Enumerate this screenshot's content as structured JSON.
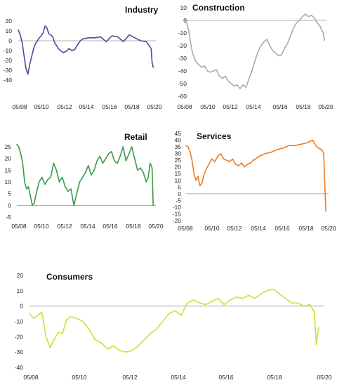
{
  "chart_data": [
    {
      "type": "line",
      "title": "Industry",
      "xlabel": "",
      "ylabel": "",
      "ylim": [
        -40,
        20
      ],
      "yticks": [
        -40,
        -30,
        -20,
        -10,
        0,
        10,
        20
      ],
      "x_tick_labels": [
        "05/08",
        "05/10",
        "05/12",
        "05/14",
        "05/16",
        "05/18",
        "05/20"
      ],
      "color": "#4a4a9a",
      "series": [
        {
          "x": [
            2008.33,
            2008.5,
            2008.67,
            2008.83,
            2009.0,
            2009.17,
            2009.33,
            2009.5,
            2009.67,
            2009.83,
            2010.0,
            2010.17,
            2010.33,
            2010.5,
            2010.67,
            2010.83,
            2011.0,
            2011.17,
            2011.33,
            2011.5,
            2011.67,
            2011.83,
            2012.0,
            2012.25,
            2012.5,
            2012.75,
            2013.0,
            2013.25,
            2013.5,
            2013.75,
            2014.0,
            2014.5,
            2015.0,
            2015.5,
            2016.0,
            2016.5,
            2017.0,
            2017.5,
            2018.0,
            2018.5,
            2019.0,
            2019.5,
            2019.75,
            2019.92,
            2020.0,
            2020.1
          ],
          "y": [
            11,
            6,
            -2,
            -15,
            -28,
            -34,
            -24,
            -16,
            -8,
            -3,
            0,
            3,
            5,
            8,
            15,
            13,
            7,
            6,
            4,
            -2,
            -5,
            -8,
            -10,
            -12,
            -11,
            -8,
            -10,
            -9,
            -4,
            0,
            2,
            3,
            3,
            4,
            -1,
            5,
            4,
            -1,
            6,
            3,
            0,
            -1,
            -5,
            -8,
            -22,
            -27
          ]
        }
      ]
    },
    {
      "type": "line",
      "title": "Construction",
      "xlabel": "",
      "ylabel": "",
      "ylim": [
        -60,
        10
      ],
      "yticks": [
        -60,
        -50,
        -40,
        -30,
        -20,
        -10,
        0,
        10
      ],
      "x_tick_labels": [
        "05/08",
        "05/10",
        "05/12",
        "05/14",
        "05/16",
        "05/18",
        "05/20"
      ],
      "color": "#aaaaaa",
      "series": [
        {
          "x": [
            2008.33,
            2008.5,
            2008.67,
            2008.83,
            2009.0,
            2009.25,
            2009.5,
            2009.75,
            2010.0,
            2010.25,
            2010.5,
            2010.75,
            2011.0,
            2011.25,
            2011.5,
            2011.75,
            2012.0,
            2012.25,
            2012.5,
            2012.75,
            2013.0,
            2013.25,
            2013.5,
            2013.75,
            2014.0,
            2014.25,
            2014.5,
            2014.75,
            2015.0,
            2015.25,
            2015.5,
            2015.75,
            2016.0,
            2016.25,
            2016.5,
            2016.75,
            2017.0,
            2017.25,
            2017.5,
            2017.75,
            2018.0,
            2018.25,
            2018.5,
            2018.75,
            2019.0,
            2019.25,
            2019.5,
            2019.75,
            2020.0,
            2020.1
          ],
          "y": [
            1,
            -2,
            -8,
            -18,
            -26,
            -32,
            -35,
            -37,
            -36,
            -40,
            -41,
            -40,
            -39,
            -44,
            -46,
            -44,
            -48,
            -50,
            -52,
            -51,
            -54,
            -51,
            -53,
            -46,
            -40,
            -32,
            -25,
            -20,
            -17,
            -15,
            -20,
            -24,
            -26,
            -28,
            -27,
            -22,
            -18,
            -12,
            -6,
            -2,
            0,
            3,
            5,
            3,
            4,
            2,
            -2,
            -5,
            -10,
            -16
          ]
        }
      ]
    },
    {
      "type": "line",
      "title": "Retail",
      "xlabel": "",
      "ylabel": "",
      "ylim": [
        -5,
        25
      ],
      "yticks": [
        -5,
        0,
        5,
        10,
        15,
        20,
        25
      ],
      "x_tick_labels": [
        "05/08",
        "05/10",
        "05/12",
        "05/14",
        "05/16",
        "05/18",
        "05/20"
      ],
      "color": "#3a9a4a",
      "series": [
        {
          "x": [
            2008.33,
            2008.5,
            2008.67,
            2008.83,
            2009.0,
            2009.17,
            2009.33,
            2009.5,
            2009.67,
            2009.83,
            2010.0,
            2010.25,
            2010.5,
            2010.75,
            2011.0,
            2011.25,
            2011.5,
            2011.75,
            2012.0,
            2012.25,
            2012.5,
            2012.75,
            2013.0,
            2013.25,
            2013.5,
            2013.75,
            2014.0,
            2014.25,
            2014.5,
            2014.75,
            2015.0,
            2015.25,
            2015.5,
            2015.75,
            2016.0,
            2016.25,
            2016.5,
            2016.75,
            2017.0,
            2017.25,
            2017.5,
            2017.75,
            2018.0,
            2018.25,
            2018.5,
            2018.75,
            2019.0,
            2019.25,
            2019.5,
            2019.67,
            2019.83,
            2020.0,
            2020.1
          ],
          "y": [
            26,
            25,
            22,
            18,
            10,
            7,
            8,
            4,
            0,
            1,
            5,
            10,
            12,
            9,
            11,
            12,
            18,
            15,
            10,
            12,
            8,
            6,
            7,
            0,
            5,
            10,
            12,
            14,
            17,
            13,
            15,
            19,
            21,
            18,
            20,
            22,
            23,
            19,
            18,
            21,
            25,
            19,
            22,
            25,
            20,
            15,
            16,
            14,
            10,
            12,
            18,
            16,
            0
          ]
        }
      ]
    },
    {
      "type": "line",
      "title": "Services",
      "xlabel": "",
      "ylabel": "",
      "ylim": [
        -20,
        45
      ],
      "yticks": [
        -20,
        -15,
        -10,
        -5,
        0,
        5,
        10,
        15,
        20,
        25,
        30,
        35,
        40,
        45
      ],
      "x_tick_labels": [
        "05/08",
        "05/10",
        "05/12",
        "05/14",
        "05/16",
        "05/18",
        "05/20"
      ],
      "color": "#f07a1e",
      "series": [
        {
          "x": [
            2008.33,
            2008.5,
            2008.67,
            2008.83,
            2009.0,
            2009.17,
            2009.33,
            2009.5,
            2009.67,
            2009.83,
            2010.0,
            2010.25,
            2010.5,
            2010.75,
            2011.0,
            2011.25,
            2011.5,
            2011.75,
            2012.0,
            2012.25,
            2012.5,
            2012.75,
            2013.0,
            2013.25,
            2013.5,
            2013.75,
            2014.0,
            2014.5,
            2015.0,
            2015.5,
            2016.0,
            2016.5,
            2017.0,
            2017.5,
            2018.0,
            2018.5,
            2019.0,
            2019.25,
            2019.5,
            2019.75,
            2019.92,
            2020.0,
            2020.1
          ],
          "y": [
            36,
            35,
            31,
            25,
            15,
            10,
            13,
            6,
            8,
            14,
            18,
            22,
            26,
            24,
            28,
            30,
            26,
            25,
            24,
            26,
            22,
            21,
            23,
            20,
            22,
            23,
            25,
            28,
            30,
            31,
            33,
            34,
            36,
            36,
            37,
            38,
            40,
            36,
            34,
            33,
            30,
            10,
            -13
          ]
        }
      ]
    },
    {
      "type": "line",
      "title": "Consumers",
      "xlabel": "",
      "ylabel": "",
      "ylim": [
        -40,
        20
      ],
      "yticks": [
        -40,
        -30,
        -20,
        -10,
        0,
        10,
        20
      ],
      "x_tick_labels": [
        "05/08",
        "05/10",
        "05/12",
        "05/14",
        "05/16",
        "05/18",
        "05/20"
      ],
      "color": "#d4dc3a",
      "series": [
        {
          "x": [
            2008.33,
            2008.5,
            2008.67,
            2008.83,
            2009.0,
            2009.17,
            2009.33,
            2009.5,
            2009.67,
            2009.83,
            2010.0,
            2010.25,
            2010.5,
            2010.75,
            2011.0,
            2011.25,
            2011.5,
            2011.75,
            2012.0,
            2012.25,
            2012.5,
            2012.75,
            2013.0,
            2013.25,
            2013.5,
            2013.75,
            2014.0,
            2014.25,
            2014.5,
            2014.75,
            2015.0,
            2015.25,
            2015.5,
            2015.75,
            2016.0,
            2016.25,
            2016.5,
            2016.75,
            2017.0,
            2017.25,
            2017.5,
            2017.75,
            2018.0,
            2018.25,
            2018.5,
            2018.75,
            2019.0,
            2019.25,
            2019.5,
            2019.75,
            2019.92,
            2020.0,
            2020.1
          ],
          "y": [
            -5,
            -8,
            -6,
            -4,
            -20,
            -27,
            -22,
            -17,
            -18,
            -9,
            -7,
            -8,
            -10,
            -15,
            -22,
            -24,
            -28,
            -26,
            -29,
            -30,
            -29,
            -26,
            -22,
            -18,
            -15,
            -10,
            -5,
            -3,
            -6,
            2,
            4,
            2,
            1,
            3,
            5,
            1,
            4,
            6,
            5,
            7,
            5,
            8,
            10,
            11,
            8,
            5,
            2,
            2,
            0,
            1,
            -4,
            -25,
            -14
          ]
        }
      ]
    }
  ]
}
